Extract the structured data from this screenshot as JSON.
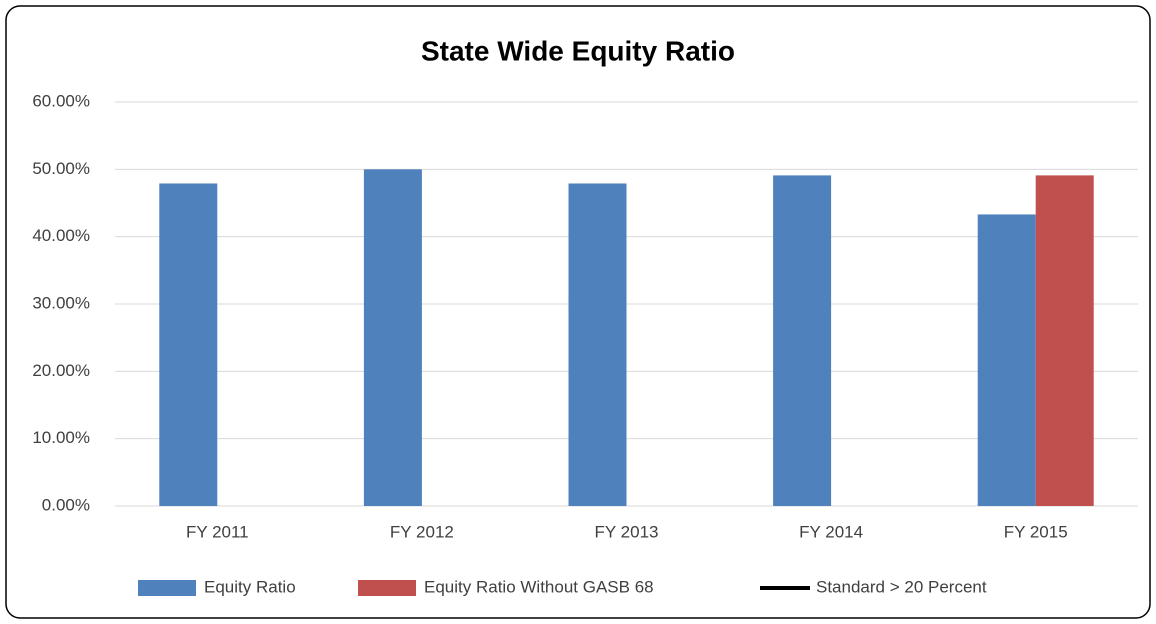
{
  "chart_data": {
    "type": "bar",
    "title": "State Wide Equity Ratio",
    "categories": [
      "FY 2011",
      "FY 2012",
      "FY 2013",
      "FY 2014",
      "FY 2015"
    ],
    "series": [
      {
        "name": "Equity Ratio",
        "color": "#4f81bd",
        "values": [
          47.9,
          50.0,
          47.9,
          49.1,
          43.3
        ]
      },
      {
        "name": "Equity Ratio Without GASB 68",
        "color": "#c0504d",
        "values": [
          null,
          null,
          null,
          null,
          49.1
        ]
      },
      {
        "name": "Standard > 20 Percent",
        "color": "#000000",
        "type": "line",
        "values": [
          null,
          null,
          null,
          null,
          null
        ]
      }
    ],
    "ylim": [
      0,
      60
    ],
    "yticks": [
      {
        "value": 0,
        "label": "0.00%"
      },
      {
        "value": 10,
        "label": "10.00%"
      },
      {
        "value": 20,
        "label": "20.00%"
      },
      {
        "value": 30,
        "label": "30.00%"
      },
      {
        "value": 40,
        "label": "40.00%"
      },
      {
        "value": 50,
        "label": "50.00%"
      },
      {
        "value": 60,
        "label": "60.00%"
      }
    ],
    "grid": true,
    "legend": "bottom"
  }
}
